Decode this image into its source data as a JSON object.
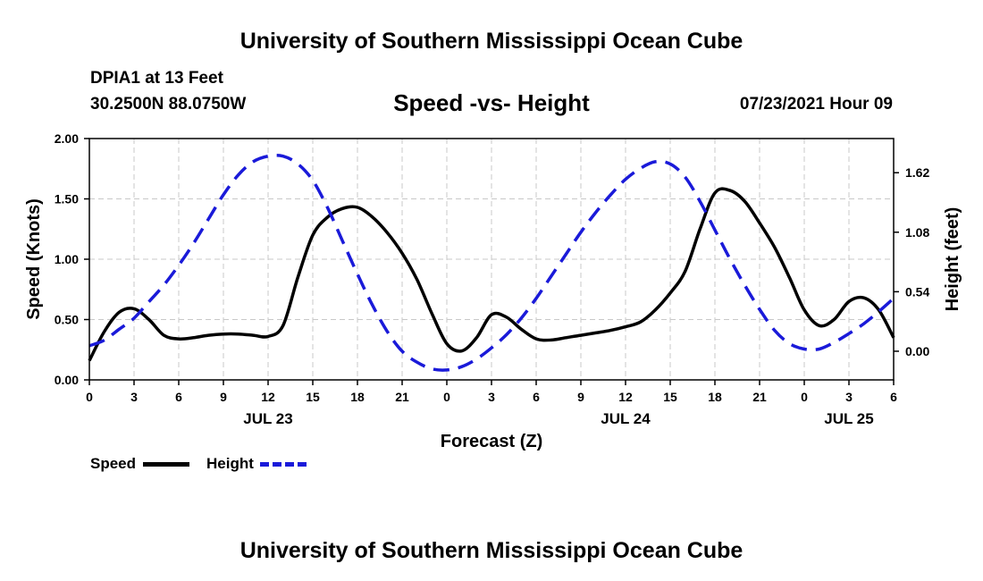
{
  "header": {
    "title_top": "University of Southern Mississippi Ocean Cube",
    "title_bottom": "University of Southern Mississippi Ocean Cube",
    "station": "DPIA1 at 13 Feet",
    "coords": "30.2500N  88.0750W",
    "datetime": "07/23/2021 Hour 09"
  },
  "colors": {
    "speed": "#000000",
    "height": "#1a1ad9",
    "grid": "#c8c8c8"
  },
  "chart_data": {
    "type": "line",
    "title": "Speed -vs- Height",
    "xlabel": "Forecast (Z)",
    "ylabel_left": "Speed (Knots)",
    "ylabel_right": "Height (feet)",
    "x_range_hours": [
      0,
      54
    ],
    "x_ticks": [
      {
        "hour": 0,
        "label": "0"
      },
      {
        "hour": 3,
        "label": "3"
      },
      {
        "hour": 6,
        "label": "6"
      },
      {
        "hour": 9,
        "label": "9"
      },
      {
        "hour": 12,
        "label": "12"
      },
      {
        "hour": 15,
        "label": "15"
      },
      {
        "hour": 18,
        "label": "18"
      },
      {
        "hour": 21,
        "label": "21"
      },
      {
        "hour": 24,
        "label": "0"
      },
      {
        "hour": 27,
        "label": "3"
      },
      {
        "hour": 30,
        "label": "6"
      },
      {
        "hour": 33,
        "label": "9"
      },
      {
        "hour": 36,
        "label": "12"
      },
      {
        "hour": 39,
        "label": "15"
      },
      {
        "hour": 42,
        "label": "18"
      },
      {
        "hour": 45,
        "label": "21"
      },
      {
        "hour": 48,
        "label": "0"
      },
      {
        "hour": 51,
        "label": "3"
      },
      {
        "hour": 54,
        "label": "6"
      }
    ],
    "day_labels": [
      {
        "hour": 12,
        "label": "JUL 23"
      },
      {
        "hour": 36,
        "label": "JUL 24"
      },
      {
        "hour": 51,
        "label": "JUL 25"
      }
    ],
    "ylim_left": [
      0,
      2.0
    ],
    "yticks_left": [
      {
        "value": 0,
        "label": "0.00"
      },
      {
        "value": 0.5,
        "label": "0.50"
      },
      {
        "value": 1.0,
        "label": "1.00"
      },
      {
        "value": 1.5,
        "label": "1.50"
      },
      {
        "value": 2.0,
        "label": "2.00"
      }
    ],
    "ylim_right": [
      -0.26,
      1.93
    ],
    "yticks_right": [
      {
        "value": 0.0,
        "label": "0.00"
      },
      {
        "value": 0.54,
        "label": "0.54"
      },
      {
        "value": 1.08,
        "label": "1.08"
      },
      {
        "value": 1.62,
        "label": "1.62"
      }
    ],
    "legend": [
      {
        "name": "Speed",
        "style": "solid"
      },
      {
        "name": "Height",
        "style": "dashed"
      }
    ],
    "series": [
      {
        "name": "Speed",
        "axis": "left",
        "x": [
          0,
          1,
          2,
          3,
          4,
          5,
          6,
          7,
          8,
          9,
          10,
          11,
          12,
          13,
          14,
          15,
          16,
          17,
          18,
          19,
          20,
          21,
          22,
          23,
          24,
          25,
          26,
          27,
          28,
          29,
          30,
          31,
          32,
          33,
          34,
          35,
          36,
          37,
          38,
          39,
          40,
          41,
          42,
          43,
          44,
          45,
          46,
          47,
          48,
          49,
          50,
          51,
          52,
          53,
          54
        ],
        "values": [
          0.16,
          0.4,
          0.56,
          0.59,
          0.5,
          0.37,
          0.34,
          0.35,
          0.37,
          0.38,
          0.38,
          0.37,
          0.36,
          0.45,
          0.85,
          1.2,
          1.35,
          1.42,
          1.43,
          1.35,
          1.22,
          1.05,
          0.83,
          0.55,
          0.3,
          0.24,
          0.35,
          0.54,
          0.52,
          0.42,
          0.34,
          0.33,
          0.35,
          0.37,
          0.39,
          0.41,
          0.44,
          0.48,
          0.58,
          0.72,
          0.9,
          1.25,
          1.55,
          1.57,
          1.48,
          1.3,
          1.1,
          0.85,
          0.58,
          0.45,
          0.5,
          0.65,
          0.68,
          0.58,
          0.35
        ]
      },
      {
        "name": "Height",
        "axis": "right",
        "x": [
          0,
          1,
          2,
          3,
          4,
          5,
          6,
          7,
          8,
          9,
          10,
          11,
          12,
          13,
          14,
          15,
          16,
          17,
          18,
          19,
          20,
          21,
          22,
          23,
          24,
          25,
          26,
          27,
          28,
          29,
          30,
          31,
          32,
          33,
          34,
          35,
          36,
          37,
          38,
          39,
          40,
          41,
          42,
          43,
          44,
          45,
          46,
          47,
          48,
          49,
          50,
          51,
          52,
          53,
          54
        ],
        "values": [
          0.05,
          0.1,
          0.2,
          0.3,
          0.45,
          0.6,
          0.78,
          0.98,
          1.2,
          1.42,
          1.6,
          1.72,
          1.77,
          1.77,
          1.7,
          1.55,
          1.3,
          1.0,
          0.7,
          0.42,
          0.18,
          0.0,
          -0.1,
          -0.16,
          -0.17,
          -0.14,
          -0.07,
          0.03,
          0.15,
          0.3,
          0.48,
          0.68,
          0.88,
          1.08,
          1.26,
          1.42,
          1.56,
          1.66,
          1.72,
          1.7,
          1.58,
          1.36,
          1.1,
          0.84,
          0.6,
          0.38,
          0.19,
          0.07,
          0.02,
          0.02,
          0.08,
          0.16,
          0.25,
          0.36,
          0.48
        ]
      }
    ]
  }
}
